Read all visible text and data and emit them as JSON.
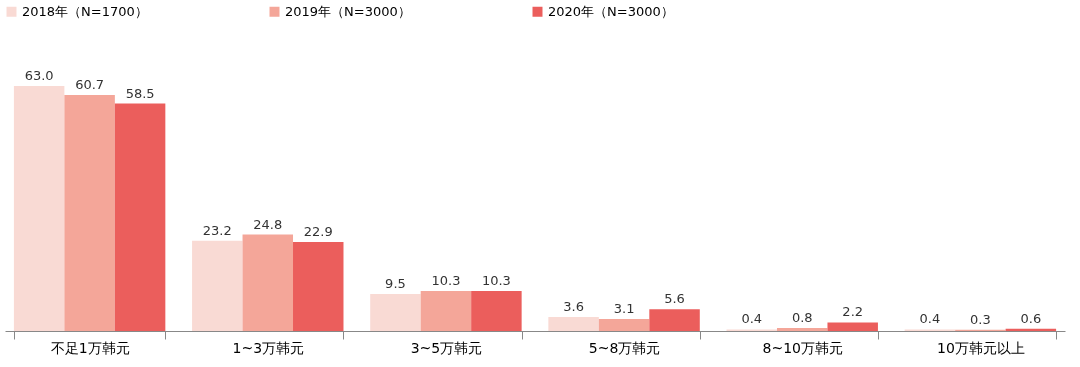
{
  "chart_data": {
    "type": "bar",
    "categories": [
      "不足1万韩元",
      "1~3万韩元",
      "3~5万韩元",
      "5~8万韩元",
      "8~10万韩元",
      "10万韩元以上"
    ],
    "series": [
      {
        "name": "2018年（N=1700）",
        "color": "#f9dad4",
        "values": [
          63.0,
          23.2,
          9.5,
          3.6,
          0.4,
          0.4
        ],
        "value_labels": [
          "63.0",
          "23.2",
          "9.5",
          "3.6",
          "0.4",
          "0.4"
        ]
      },
      {
        "name": "2019年（N=3000）",
        "color": "#f4a699",
        "values": [
          60.7,
          24.8,
          10.3,
          3.1,
          0.8,
          0.3
        ],
        "value_labels": [
          "60.7",
          "24.8",
          "10.3",
          "3.1",
          "0.8",
          "0.3"
        ]
      },
      {
        "name": "2020年（N=3000）",
        "color": "#eb5e5c",
        "values": [
          58.5,
          22.9,
          10.3,
          5.6,
          2.2,
          0.6
        ],
        "value_labels": [
          "58.5",
          "22.9",
          "10.3",
          "5.6",
          "2.2",
          "0.6"
        ]
      }
    ],
    "legend": "top",
    "grid": false
  }
}
